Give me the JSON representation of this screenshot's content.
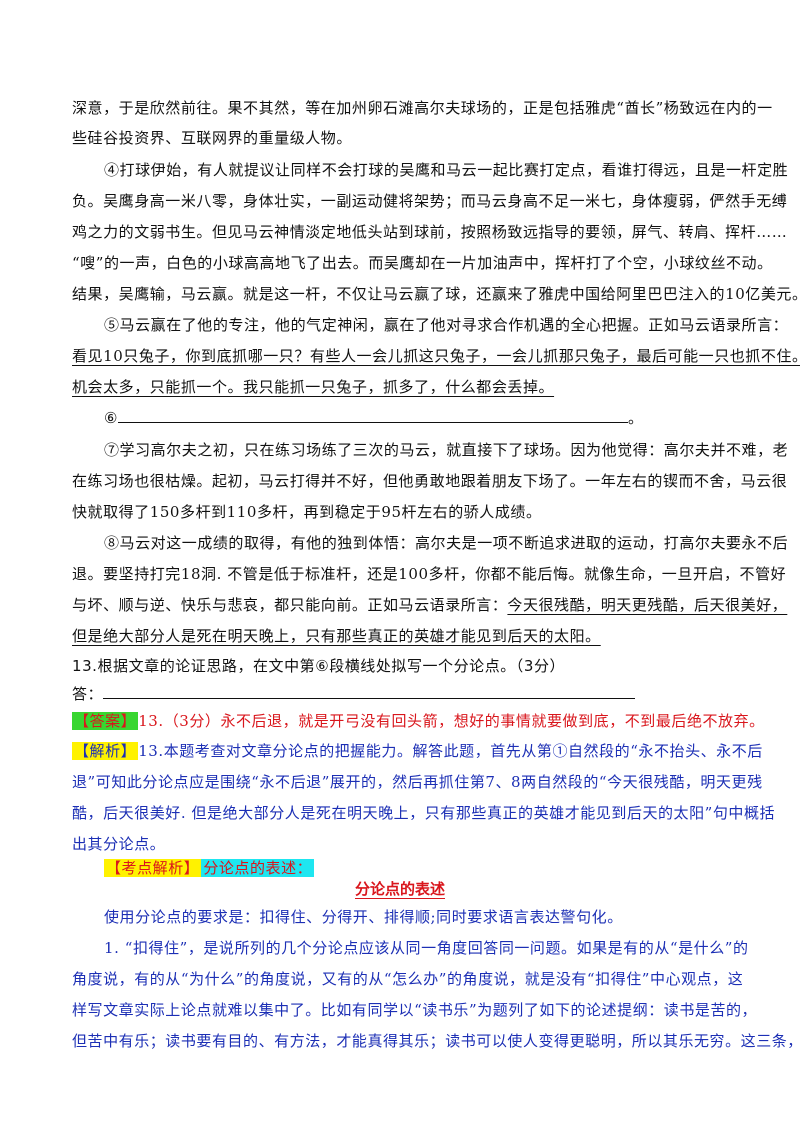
{
  "passage": {
    "l1": "深意，于是欣然前往。果不其然，等在加州卵石滩高尔夫球场的，正是包括雅虎“酋长”杨致远在内的一",
    "l2": "些硅谷投资界、互联网界的重量级人物。",
    "p4_1": "④打球伊始，有人就提议让同样不会打球的吴鹰和马云一起比赛打定点，看谁打得远，且是一杆定胜",
    "p4_2": "负。吴鹰身高一米八零，身体壮实，一副运动健将架势；而马云身高不足一米七，身体瘦弱，俨然手无缚",
    "p4_3": "鸡之力的文弱书生。但见马云神情淡定地低头站到球前，按照杨致远指导的要领，屏气、转肩、挥杆……",
    "p4_4": "“嗖”的一声，白色的小球高高地飞了出去。而吴鹰却在一片加油声中，挥杆打了个空，小球纹丝不动。",
    "p4_5": "结果，吴鹰输，马云赢。就是这一杆，不仅让马云赢了球，还赢来了雅虎中国给阿里巴巴注入的10亿美元。",
    "p5_1": "⑤马云赢在了他的专注，他的气定神闲，赢在了他对寻求合作机遇的全心把握。正如马云语录所言：",
    "p5_2": "看见10只兔子，你到底抓哪一只？有些人一会儿抓这只兔子，一会儿抓那只兔子，最后可能一只也抓不住。",
    "p5_3": "机会太多，只能抓一个。我只能抓一只兔子，抓多了，什么都会丢掉。",
    "p6_num": "⑥",
    "p6_end": "。",
    "p7_1": "⑦学习高尔夫之初，只在练习场练了三次的马云，就直接下了球场。因为他觉得：高尔夫并不难，老",
    "p7_2": "在练习场也很枯燥。起初，马云打得并不好，但他勇敢地跟着朋友下场了。一年左右的锲而不舍，马云很",
    "p7_3": "快就取得了150多杆到110多杆，再到稳定于95杆左右的骄人成绩。",
    "p8_1": "⑧马云对这一成绩的取得，有他的独到体悟：高尔夫是一项不断追求进取的运动，打高尔夫要永不后",
    "p8_2": "退。要坚持打完18洞. 不管是低于标准杆，还是100多杆，你都不能后悔。就像生命，一旦开启，不管好",
    "p8_3a": "与坏、顺与逆、快乐与悲哀，都只能向前。正如马云语录所言：",
    "p8_3b": "今天很残酷，明天更残酷，后天很美好，",
    "p8_4": "但是绝大部分人是死在明天晚上，只有那些真正的英雄才能见到后天的太阳。"
  },
  "question": {
    "text": "13.根据文章的论证思路，在文中第⑥段横线处拟写一个分论点。（3分）",
    "answer_label": "答："
  },
  "answer": {
    "tag": "【答案】",
    "text": "13.（3分）永不后退，就是开弓没有回头箭，想好的事情就要做到底，不到最后绝不放弃。"
  },
  "analysis": {
    "tag": "【解析】",
    "l1": "13.本题考查对文章分论点的把握能力。解答此题，首先从第①自然段的“永不抬头、永不后",
    "l2": "退”可知此分论点应是围绕“永不后退”展开的，然后再抓住第7、8两自然段的“今天很残酷，明天更残",
    "l3": "酷，后天很美好. 但是绝大部分人是死在明天晚上，只有那些真正的英雄才能见到后天的太阳”句中概括",
    "l4": "出其分论点。"
  },
  "kaodian": {
    "tag": "【考点解析】",
    "label": "分论点的表述："
  },
  "section": {
    "title": "分论点的表述",
    "req": "使用分论点的要求是：扣得住、分得开、排得顺;同时要求语言表达警句化。",
    "p1_1": "1. “扣得住”，是说所列的几个分论点应该从同一角度回答同一问题。如果是有的从“是什么”的",
    "p1_2": "角度说，有的从“为什么”的角度说，又有的从“怎么办”的角度说，就是没有“扣得住”中心观点，这",
    "p1_3": "样写文章实际上论点就难以集中了。比如有同学以“读书乐”为题列了如下的论述提纲：读书是苦的，",
    "p1_4": "但苦中有乐；读书要有目的、有方法，才能真得其乐；读书可以使人变得更聪明，所以其乐无穷。这三条，"
  }
}
